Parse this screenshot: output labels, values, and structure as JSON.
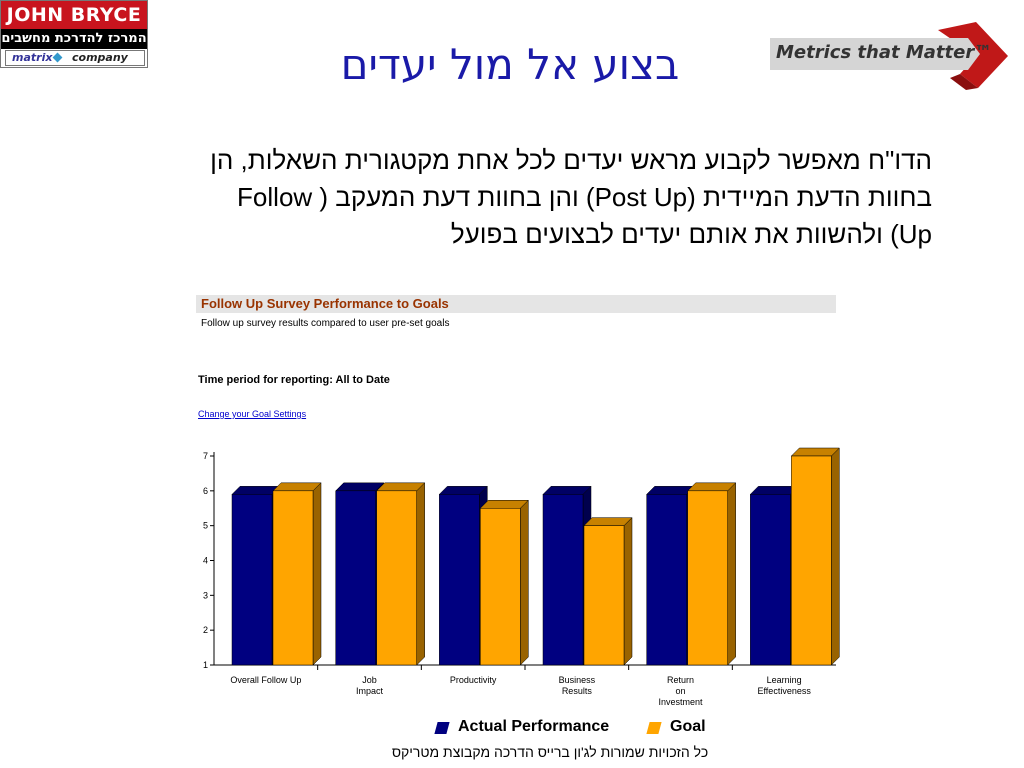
{
  "brand": {
    "jb_name": "JOHN BRYCE",
    "jb_tagline": "המרכז להדרכת מחשבים",
    "jb_matrix": "matrix",
    "jb_company": "company",
    "mtm_name": "Metrics that Matter™"
  },
  "slide": {
    "title": "בצוע אל מול יעדים",
    "body_lines": [
      "הדו\"ח מאפשר לקבוע מראש יעדים לכל אחת מקטגורית השאלות, הן",
      "בחוות הדעת המיידית (Post Up) והן בחוות דעת המעקב  ( Follow",
      "Up) ולהשוות את אותם יעדים לבצועים בפועל"
    ],
    "footer": "כל הזכויות שמורות לג'ון ברייס הדרכה מקבוצת מטריקס"
  },
  "report": {
    "title": "Follow Up Survey Performance to Goals",
    "subtitle": "Follow up survey results compared to user pre-set goals",
    "period": "Time period for reporting: All to Date",
    "link": "Change your Goal Settings"
  },
  "colors": {
    "actual": "#000080",
    "goal": "#ffa500",
    "title_text": "#1a1aa8",
    "report_title": "#993300"
  },
  "chart_data": {
    "type": "bar",
    "categories": [
      [
        "Overall Follow Up"
      ],
      [
        "Job",
        "Impact"
      ],
      [
        "Productivity"
      ],
      [
        "Business",
        "Results"
      ],
      [
        "Return",
        "on",
        "Investment"
      ],
      [
        "Learning",
        "Effectiveness"
      ]
    ],
    "series": [
      {
        "name": "Actual Performance",
        "values": [
          5.9,
          6.0,
          5.9,
          5.9,
          5.9,
          5.9
        ]
      },
      {
        "name": "Goal",
        "values": [
          6.0,
          6.0,
          5.5,
          5.0,
          6.0,
          7.0
        ]
      }
    ],
    "yticks": [
      1,
      2,
      3,
      4,
      5,
      6,
      7
    ],
    "ylim": [
      1,
      7
    ],
    "legend_position": "bottom"
  }
}
